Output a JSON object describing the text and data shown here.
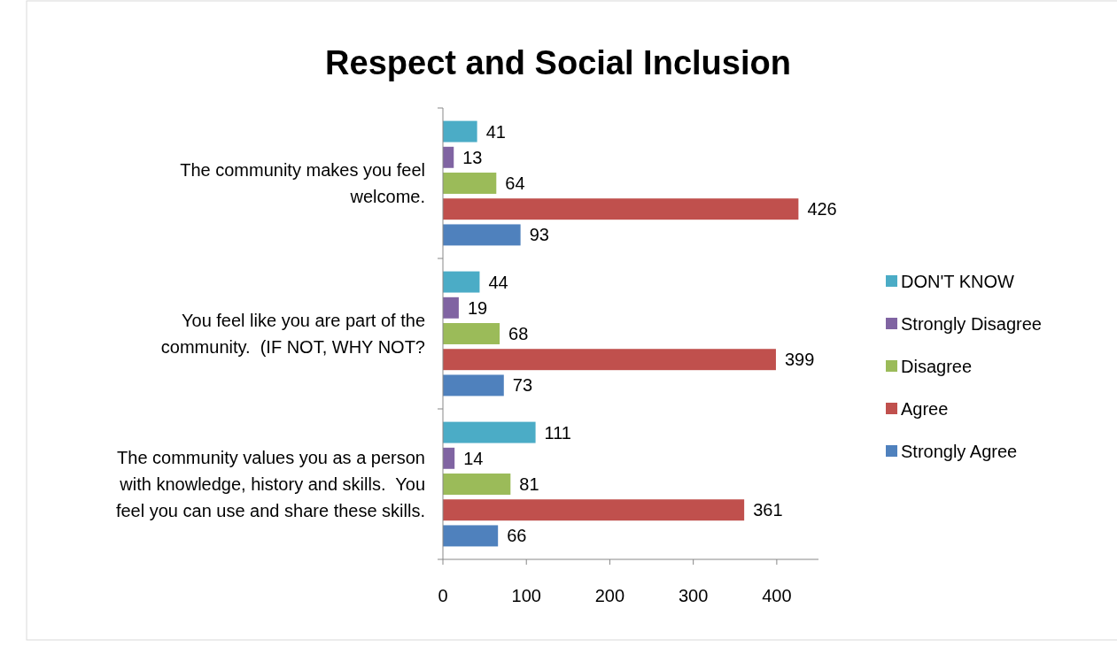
{
  "chart_data": {
    "type": "bar",
    "orientation": "horizontal",
    "title": "Respect and Social Inclusion",
    "categories": [
      "The community makes you feel\nwelcome.",
      "You feel like you are part of the\ncommunity.  (IF NOT, WHY NOT?",
      "The community values you as a person\nwith knowledge, history and skills.  You\nfeel you can use and share these skills."
    ],
    "series": [
      {
        "name": "DON'T KNOW",
        "color": "#4bacc6",
        "values": [
          41,
          44,
          111
        ]
      },
      {
        "name": "Strongly Disagree",
        "color": "#8064a2",
        "values": [
          13,
          19,
          14
        ]
      },
      {
        "name": "Disagree",
        "color": "#9bbb59",
        "values": [
          64,
          68,
          81
        ]
      },
      {
        "name": "Agree",
        "color": "#c0504d",
        "values": [
          426,
          399,
          361
        ]
      },
      {
        "name": "Strongly Agree",
        "color": "#4f81bd",
        "values": [
          93,
          73,
          66
        ]
      }
    ],
    "xlim": [
      0,
      450
    ],
    "xticks": [
      0,
      100,
      200,
      300,
      400
    ],
    "data_labels": true,
    "grid": false,
    "legend": "right"
  }
}
